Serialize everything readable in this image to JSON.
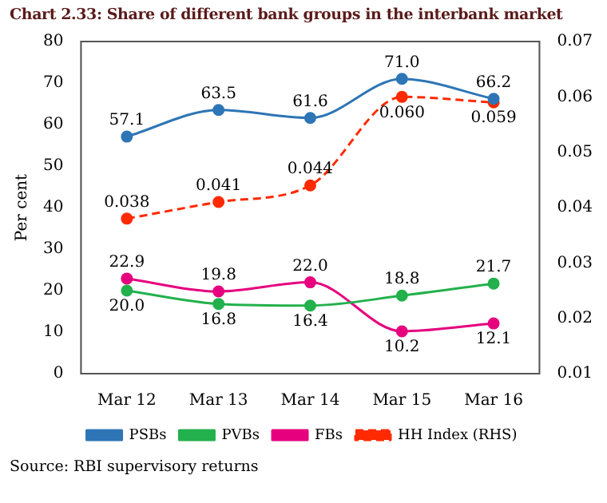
{
  "chart_data": {
    "type": "line",
    "title": "Chart 2.33: Share of different bank groups in the interbank market",
    "ylabel": "Per cent",
    "categories": [
      "Mar 12",
      "Mar 13",
      "Mar 14",
      "Mar 15",
      "Mar 16"
    ],
    "series": [
      {
        "name": "PSBs",
        "color": "#2e75b6",
        "values": [
          57.1,
          63.5,
          61.6,
          71.0,
          66.2
        ],
        "value_labels": [
          "57.1",
          "63.5",
          "61.6",
          "71.0",
          "66.2"
        ]
      },
      {
        "name": "PVBs",
        "color": "#22b14c",
        "values": [
          20.0,
          16.8,
          16.4,
          18.8,
          21.7
        ],
        "value_labels": [
          "20.0",
          "16.8",
          "16.4",
          "18.8",
          "21.7"
        ]
      },
      {
        "name": "FBs",
        "color": "#e6007e",
        "values": [
          22.9,
          19.8,
          22.0,
          10.2,
          12.1
        ],
        "value_labels": [
          "22.9",
          "19.8",
          "22.0",
          "10.2",
          "12.1"
        ]
      },
      {
        "name": "HH Index (RHS)",
        "color": "#ff2a00",
        "axis": "y2",
        "line_style": "dashed",
        "values": [
          0.038,
          0.041,
          0.044,
          0.06,
          0.059
        ],
        "value_labels": [
          "0.038",
          "0.041",
          "0.044",
          "0.060",
          "0.059"
        ]
      }
    ],
    "ylim": [
      0,
      80
    ],
    "yticks": [
      0,
      10,
      20,
      30,
      40,
      50,
      60,
      70,
      80
    ],
    "y2lim": [
      0.01,
      0.07
    ],
    "y2ticks": [
      0.01,
      0.02,
      0.03,
      0.04,
      0.05,
      0.06,
      0.07
    ],
    "legend": "bottom",
    "marker": "circle",
    "annotations": [
      "Source: RBI supervisory returns"
    ]
  }
}
